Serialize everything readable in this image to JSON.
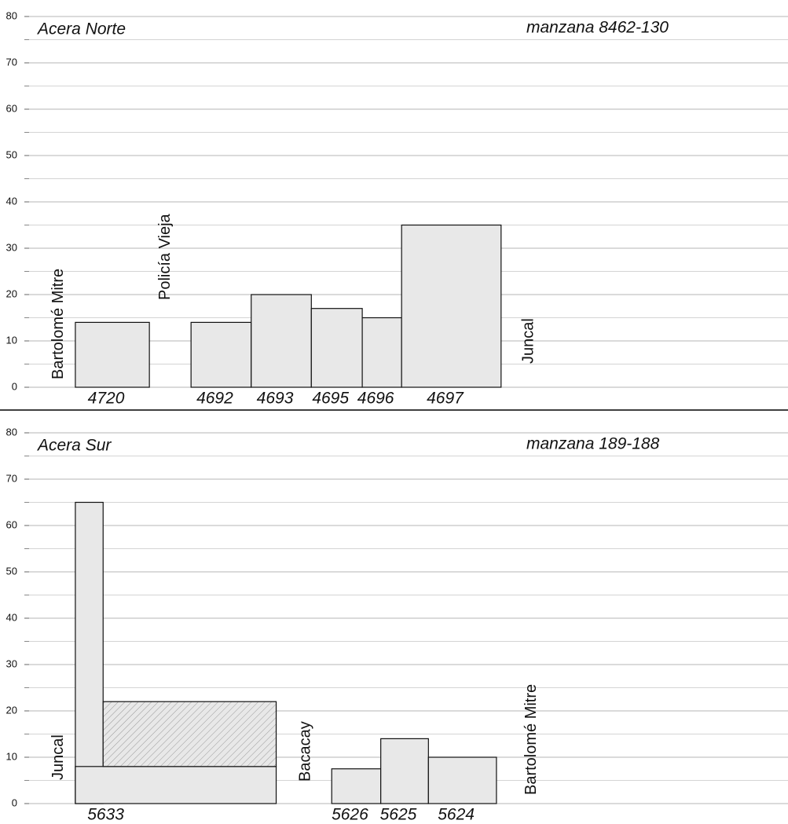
{
  "chart_data": [
    {
      "type": "bar",
      "title": "Acera Norte",
      "subtitle": "manzana 8462-130",
      "ylim": [
        0,
        80
      ],
      "yticks": [
        0,
        10,
        20,
        30,
        40,
        50,
        60,
        70,
        80
      ],
      "minor_grid": true,
      "xlim": [
        0,
        164
      ],
      "color": "#e8e8e8",
      "streets": [
        {
          "name": "Bartolomé Mitre",
          "x": 6.4
        },
        {
          "name": "Policía Vieja",
          "x": 29.5
        },
        {
          "name": "Juncal",
          "x": 108
        }
      ],
      "lots": [
        {
          "label": "4720",
          "parts": [
            {
              "x": [
                10,
                26
              ],
              "value": 14
            }
          ]
        },
        {
          "label": "4692",
          "parts": [
            {
              "x": [
                35,
                48
              ],
              "value": 14
            }
          ]
        },
        {
          "label": "4693",
          "parts": [
            {
              "x": [
                48,
                61
              ],
              "value": 20
            }
          ]
        },
        {
          "label": "4695",
          "parts": [
            {
              "x": [
                61,
                72
              ],
              "value": 17
            }
          ]
        },
        {
          "label": "4696",
          "parts": [
            {
              "x": [
                72,
                80.5
              ],
              "value": 15
            }
          ]
        },
        {
          "label": "4697",
          "parts": [
            {
              "x": [
                80.5,
                102
              ],
              "value": 35
            }
          ]
        }
      ]
    },
    {
      "type": "bar",
      "title": "Acera Sur",
      "subtitle": "manzana 189-188",
      "ylim": [
        0,
        80
      ],
      "yticks": [
        0,
        10,
        20,
        30,
        40,
        50,
        60,
        70,
        80
      ],
      "minor_grid": true,
      "xlim": [
        0,
        164
      ],
      "color": "#e8e8e8",
      "streets": [
        {
          "name": "Juncal",
          "x": 6.4
        },
        {
          "name": "Bacacay",
          "x": 59.8
        },
        {
          "name": "Bartolomé Mitre",
          "x": 108.6
        }
      ],
      "lots": [
        {
          "label": "5633",
          "parts": [
            {
              "x": [
                10,
                16
              ],
              "value": 65
            },
            {
              "x": [
                10,
                53.4
              ],
              "value": 8
            },
            {
              "x": [
                16,
                53.4
              ],
              "base": 8,
              "value": 14,
              "pattern": "hatch"
            }
          ]
        },
        {
          "label": "5626",
          "parts": [
            {
              "x": [
                65.4,
                76
              ],
              "value": 7.5
            }
          ]
        },
        {
          "label": "5625",
          "parts": [
            {
              "x": [
                76,
                86.3
              ],
              "value": 14
            }
          ]
        },
        {
          "label": "5624",
          "parts": [
            {
              "x": [
                86.3,
                101
              ],
              "value": 10
            }
          ]
        }
      ]
    }
  ]
}
